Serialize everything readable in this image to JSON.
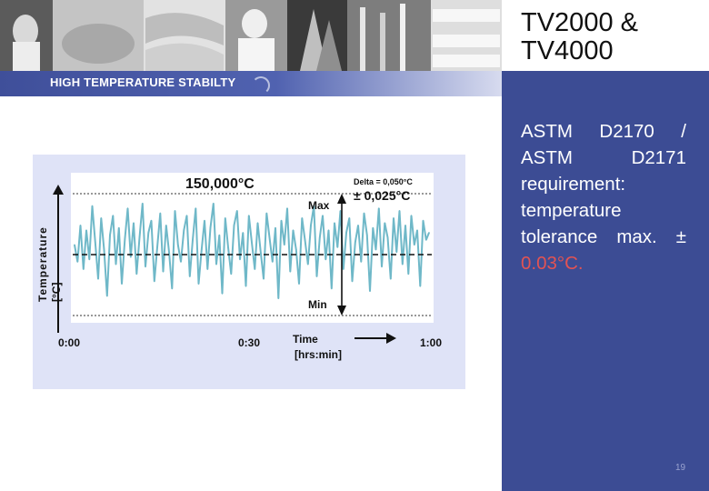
{
  "slide": {
    "title": "TV2000 & TV4000",
    "subtitle": "HIGH TEMPERATURE STABILTY",
    "body_main": "ASTM D2170 / ASTM D2171 requirement: temperature tolerance max. ±",
    "body_value": "0.03°C.",
    "page_number": "19"
  },
  "colors": {
    "accent": "#3c4c94",
    "series": "#6fb8c8",
    "tolerance_text": "#e25353",
    "chart_bg": "#dfe3f7"
  },
  "chart_data": {
    "type": "line",
    "title": "150,000°C",
    "ylabel_line1": "Temperature",
    "ylabel_line2": "[°C]",
    "xlabel_line1": "Time",
    "xlabel_line2": "[hrs:min]",
    "x_ticks": [
      "0:00",
      "0:30",
      "1:00"
    ],
    "xlim": [
      0,
      60
    ],
    "ylim": [
      -0.025,
      0.025
    ],
    "setpoint": 150.0,
    "grid": false,
    "annotations": {
      "delta": "Delta = 0,050°C",
      "band": "± 0,025°C",
      "max": "Max",
      "min": "Min"
    },
    "series": [
      {
        "x": [
          0,
          0.5,
          1,
          1.5,
          2,
          2.5,
          3,
          3.5,
          4,
          4.5,
          5,
          5.5,
          6,
          6.5,
          7,
          7.5,
          8,
          8.5,
          9,
          9.5,
          10,
          10.5,
          11,
          11.5,
          12,
          12.5,
          13,
          13.5,
          14,
          14.5,
          15,
          15.5,
          16,
          16.5,
          17,
          17.5,
          18,
          18.5,
          19,
          19.5,
          20,
          20.5,
          21,
          21.5,
          22,
          22.5,
          23,
          23.5,
          24,
          24.5,
          25,
          25.5,
          26,
          26.5,
          27,
          27.5,
          28,
          28.5,
          29,
          29.5,
          30,
          30.5,
          31,
          31.5,
          32,
          32.5,
          33,
          33.5,
          34,
          34.5,
          35,
          35.5,
          36,
          36.5,
          37,
          37.5,
          38,
          38.5,
          39,
          39.5,
          40,
          40.5,
          41,
          41.5,
          42,
          42.5,
          43,
          43.5,
          44,
          44.5,
          45,
          45.5,
          46,
          46.5,
          47,
          47.5,
          48,
          48.5,
          49,
          49.5,
          50,
          50.5,
          51,
          51.5,
          52,
          52.5,
          53,
          53.5,
          54,
          54.5,
          55,
          55.5,
          56,
          56.5,
          57,
          57.5,
          58,
          58.5,
          59,
          59.5,
          60
        ],
        "values": [
          0.004,
          -0.003,
          0.012,
          -0.006,
          0.01,
          -0.002,
          0.02,
          0.005,
          -0.01,
          0.015,
          0.002,
          -0.017,
          0.008,
          0.016,
          -0.004,
          0.011,
          -0.012,
          0.006,
          0.019,
          -0.001,
          0.013,
          -0.008,
          0.007,
          0.021,
          -0.005,
          0.009,
          0.014,
          -0.011,
          0.003,
          0.017,
          -0.007,
          0.012,
          0.001,
          -0.014,
          0.018,
          0.004,
          -0.003,
          0.01,
          0.016,
          -0.009,
          0.006,
          0.019,
          -0.012,
          0.002,
          0.014,
          -0.006,
          0.011,
          0.021,
          -0.004,
          0.008,
          -0.016,
          0.015,
          0.003,
          -0.008,
          0.012,
          0.018,
          -0.002,
          0.009,
          -0.013,
          0.016,
          0.005,
          -0.006,
          0.013,
          0.001,
          -0.01,
          0.017,
          0.007,
          -0.003,
          0.011,
          -0.018,
          0.014,
          0.004,
          0.019,
          -0.007,
          0.01,
          0.002,
          -0.012,
          0.015,
          0.006,
          -0.004,
          0.012,
          0.02,
          -0.009,
          0.007,
          0.016,
          -0.002,
          0.01,
          -0.014,
          0.013,
          0.003,
          0.018,
          -0.006,
          0.009,
          0.015,
          -0.011,
          0.005,
          0.012,
          -0.003,
          0.017,
          0.008,
          -0.015,
          0.011,
          0.002,
          0.019,
          -0.005,
          0.013,
          0.007,
          -0.01,
          0.015,
          0.001,
          0.018,
          -0.004,
          0.012,
          -0.008,
          0.016,
          0.004,
          0.01,
          -0.013,
          0.014,
          0.006,
          0.009
        ]
      }
    ]
  }
}
